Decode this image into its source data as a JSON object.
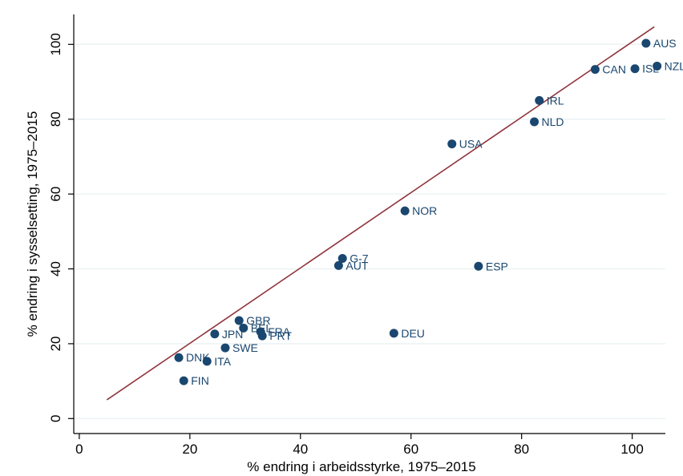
{
  "chart_data": {
    "type": "scatter",
    "xlabel": "% endring i arbeidsstyrke, 1975–2015",
    "ylabel": "% endring i sysselsetting, 1975–2015",
    "xlim": [
      -1,
      106
    ],
    "ylim": [
      -4,
      108
    ],
    "xticks": [
      0,
      20,
      40,
      60,
      80,
      100
    ],
    "yticks": [
      0,
      20,
      40,
      60,
      80,
      100
    ],
    "grid": "horizontal",
    "legend": "none",
    "colors": {
      "point": "#1a476f",
      "fit_line": "#90353b",
      "grid": "#eaf2f3",
      "axis": "#000000"
    },
    "series": [
      {
        "points": [
          {
            "label": "AUS",
            "x": 102.5,
            "y": 100.3
          },
          {
            "label": "NZL",
            "x": 104.5,
            "y": 94.2
          },
          {
            "label": "CAN",
            "x": 93.3,
            "y": 93.3
          },
          {
            "label": "ISL",
            "x": 100.5,
            "y": 93.5
          },
          {
            "label": "IRL",
            "x": 83.2,
            "y": 85.0
          },
          {
            "label": "NLD",
            "x": 82.3,
            "y": 79.3
          },
          {
            "label": "USA",
            "x": 67.4,
            "y": 73.4
          },
          {
            "label": "NOR",
            "x": 58.9,
            "y": 55.5
          },
          {
            "label": "G-7",
            "x": 47.6,
            "y": 42.8
          },
          {
            "label": "AUT",
            "x": 46.9,
            "y": 40.9
          },
          {
            "label": "ESP",
            "x": 72.2,
            "y": 40.7
          },
          {
            "label": "DEU",
            "x": 56.9,
            "y": 22.8
          },
          {
            "label": "GBR",
            "x": 28.9,
            "y": 26.2
          },
          {
            "label": "BEL",
            "x": 29.7,
            "y": 24.2
          },
          {
            "label": "FRA",
            "x": 32.8,
            "y": 23.2
          },
          {
            "label": "PRT",
            "x": 33.1,
            "y": 22.1
          },
          {
            "label": "JPN",
            "x": 24.5,
            "y": 22.6
          },
          {
            "label": "SWE",
            "x": 26.4,
            "y": 18.9
          },
          {
            "label": "ITA",
            "x": 23.1,
            "y": 15.3
          },
          {
            "label": "DNK",
            "x": 18.0,
            "y": 16.3
          },
          {
            "label": "FIN",
            "x": 18.9,
            "y": 10.1
          }
        ]
      }
    ],
    "fit_line": {
      "x": [
        5,
        104
      ],
      "y": [
        5,
        104.7
      ]
    }
  }
}
